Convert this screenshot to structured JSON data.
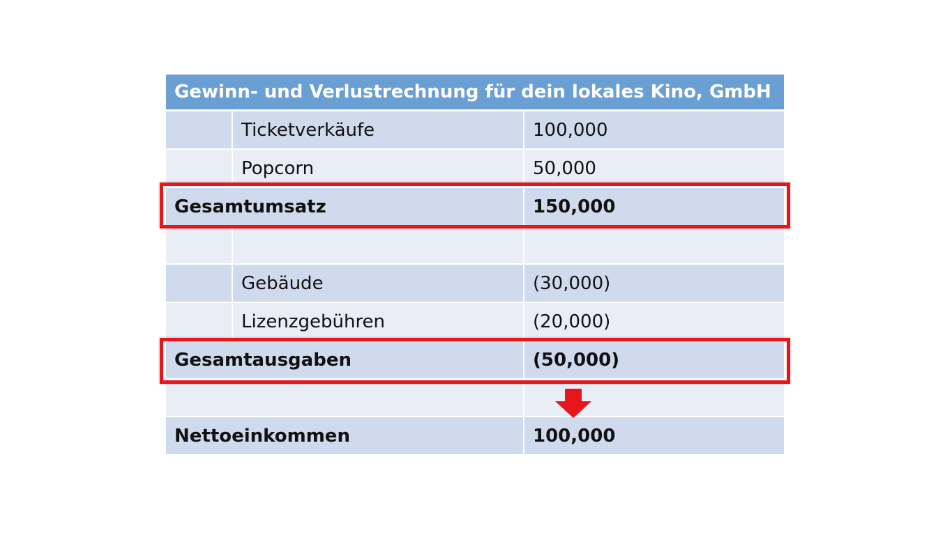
{
  "table": {
    "title": "Gewinn- und Verlustrechnung für dein lokales Kino, GmbH",
    "revenue": {
      "items": [
        {
          "label": "Ticketverkäufe",
          "amount": "100,000"
        },
        {
          "label": "Popcorn",
          "amount": "50,000"
        }
      ],
      "total": {
        "label": "Gesamtumsatz",
        "amount": "150,000"
      }
    },
    "expenses": {
      "items": [
        {
          "label": "Gebäude",
          "amount": "(30,000)"
        },
        {
          "label": "Lizenzgebühren",
          "amount": "(20,000)"
        }
      ],
      "total": {
        "label": "Gesamtausgaben",
        "amount": "(50,000)"
      }
    },
    "net": {
      "label": "Nettoeinkommen",
      "amount": "100,000"
    }
  }
}
